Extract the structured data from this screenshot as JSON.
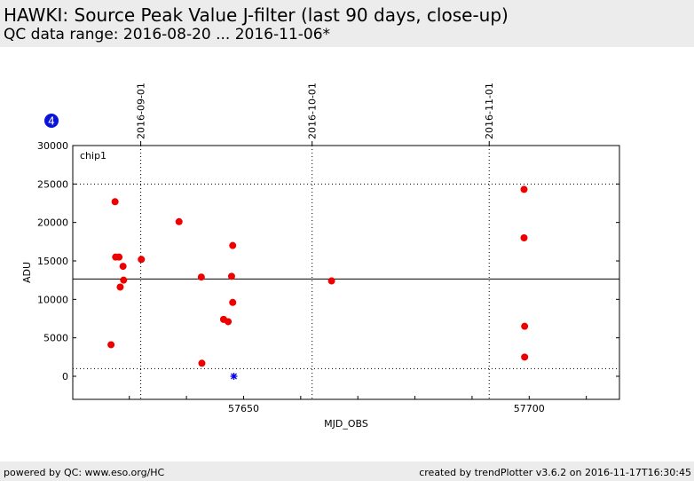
{
  "header": {
    "title": "HAWKI: Source Peak Value J-filter (last 90 days, close-up)",
    "subtitle": "QC data range: 2016-08-20 ... 2016-11-06*"
  },
  "footer": {
    "left": "powered by QC: www.eso.org/HC",
    "right": "created by trendPlotter v3.6.2 on 2016-11-17T16:30:45"
  },
  "badge": {
    "label": "4",
    "color": "#0a14d8"
  },
  "chart_data": {
    "type": "scatter",
    "panel_label": "chip1",
    "xlabel": "MJD_OBS",
    "ylabel": "ADU",
    "xlim": [
      57620.1,
      57715.8
    ],
    "ylim": [
      -3000,
      30000
    ],
    "x_ticks": [
      57650,
      57700
    ],
    "x_tick_labels": [
      "57650",
      "57700"
    ],
    "y_ticks": [
      0,
      5000,
      10000,
      15000,
      20000,
      25000,
      30000
    ],
    "y_tick_labels": [
      "0",
      "5000",
      "10000",
      "15000",
      "20000",
      "25000",
      "30000"
    ],
    "top_axis": {
      "ticks": [
        57632,
        57662,
        57693
      ],
      "tick_labels": [
        "2016-09-01",
        "2016-10-01",
        "2016-11-01"
      ]
    },
    "grid": "vertical dotted at date ticks",
    "reference_lines": [
      {
        "y": 12650,
        "style": "solid"
      },
      {
        "y": 25000,
        "style": "dotted"
      },
      {
        "y": 1000,
        "style": "dotted"
      }
    ],
    "series": [
      {
        "marker": "circle",
        "color": "#ee0000",
        "points": [
          {
            "x": 57626.8,
            "y": 4100
          },
          {
            "x": 57627.5,
            "y": 22700
          },
          {
            "x": 57627.6,
            "y": 15500
          },
          {
            "x": 57628.2,
            "y": 15500
          },
          {
            "x": 57628.4,
            "y": 11600
          },
          {
            "x": 57628.9,
            "y": 14300
          },
          {
            "x": 57629.0,
            "y": 12500
          },
          {
            "x": 57632.1,
            "y": 15200
          },
          {
            "x": 57638.7,
            "y": 20100
          },
          {
            "x": 57642.6,
            "y": 12900
          },
          {
            "x": 57642.7,
            "y": 1700
          },
          {
            "x": 57646.5,
            "y": 7400
          },
          {
            "x": 57647.3,
            "y": 7100
          },
          {
            "x": 57647.9,
            "y": 13000
          },
          {
            "x": 57648.1,
            "y": 17000
          },
          {
            "x": 57648.1,
            "y": 9600
          },
          {
            "x": 57665.4,
            "y": 12400
          },
          {
            "x": 57699.1,
            "y": 24300
          },
          {
            "x": 57699.1,
            "y": 18000
          },
          {
            "x": 57699.2,
            "y": 6500
          },
          {
            "x": 57699.2,
            "y": 2500
          }
        ]
      },
      {
        "marker": "asterisk",
        "color": "#0000ee",
        "points": [
          {
            "x": 57648.3,
            "y": 0
          }
        ]
      }
    ]
  }
}
